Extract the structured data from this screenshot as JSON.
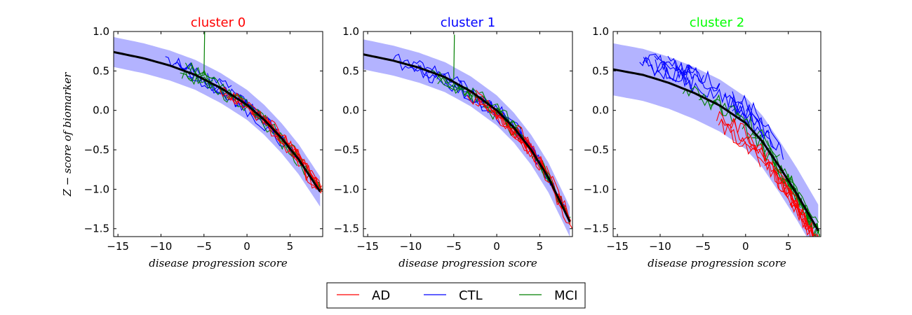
{
  "chart_data": {
    "type": "line",
    "ylabel": "Z − score of biomarker",
    "legend": {
      "placement": "bottom-center",
      "entries": [
        {
          "label": "AD",
          "color": "#ff0000"
        },
        {
          "label": "CTL",
          "color": "#0000ff"
        },
        {
          "label": "MCI",
          "color": "#008000"
        }
      ]
    },
    "shared_axes": {
      "xlim": [
        -15.5,
        8.8
      ],
      "ylim": [
        -1.6,
        1.0
      ],
      "xticks": [
        -15,
        -10,
        -5,
        0,
        5
      ],
      "xtick_labels": [
        "−15",
        "−10",
        "−5",
        "0",
        "5"
      ],
      "yticks": [
        1.0,
        0.5,
        0.0,
        -0.5,
        -1.0,
        -1.5
      ],
      "ytick_labels": [
        "1.0",
        "0.5",
        "0.0",
        "−0.5",
        "−1.0",
        "−1.5"
      ],
      "xlabel": "disease progression score"
    },
    "panels": [
      {
        "title": "cluster 0",
        "title_color": "#ff0000",
        "mean_curve": [
          [
            -15.5,
            0.74
          ],
          [
            -12,
            0.66
          ],
          [
            -9,
            0.57
          ],
          [
            -6,
            0.45
          ],
          [
            -3,
            0.28
          ],
          [
            0,
            0.07
          ],
          [
            2,
            -0.12
          ],
          [
            4,
            -0.35
          ],
          [
            6,
            -0.62
          ],
          [
            8.8,
            -1.08
          ]
        ],
        "band_halfwidth": 0.19,
        "spike": {
          "x": -5,
          "y_from": 0.45,
          "y_to": 1.0
        }
      },
      {
        "title": "cluster 1",
        "title_color": "#0000ff",
        "mean_curve": [
          [
            -15.5,
            0.71
          ],
          [
            -12,
            0.63
          ],
          [
            -9,
            0.54
          ],
          [
            -6,
            0.42
          ],
          [
            -3,
            0.24
          ],
          [
            0,
            0.0
          ],
          [
            2,
            -0.22
          ],
          [
            4,
            -0.5
          ],
          [
            6,
            -0.85
          ],
          [
            8.8,
            -1.48
          ]
        ],
        "band_halfwidth": 0.19,
        "spike": {
          "x": -5,
          "y_from": 0.4,
          "y_to": 0.96
        }
      },
      {
        "title": "cluster 2",
        "title_color": "#00ff00",
        "mean_curve": [
          [
            -15.5,
            0.52
          ],
          [
            -12,
            0.45
          ],
          [
            -9,
            0.35
          ],
          [
            -6,
            0.22
          ],
          [
            -3,
            0.06
          ],
          [
            0,
            -0.16
          ],
          [
            2,
            -0.4
          ],
          [
            4,
            -0.72
          ],
          [
            6,
            -1.06
          ],
          [
            8.8,
            -1.58
          ]
        ],
        "band_halfwidth": 0.33,
        "spike": null
      }
    ]
  }
}
